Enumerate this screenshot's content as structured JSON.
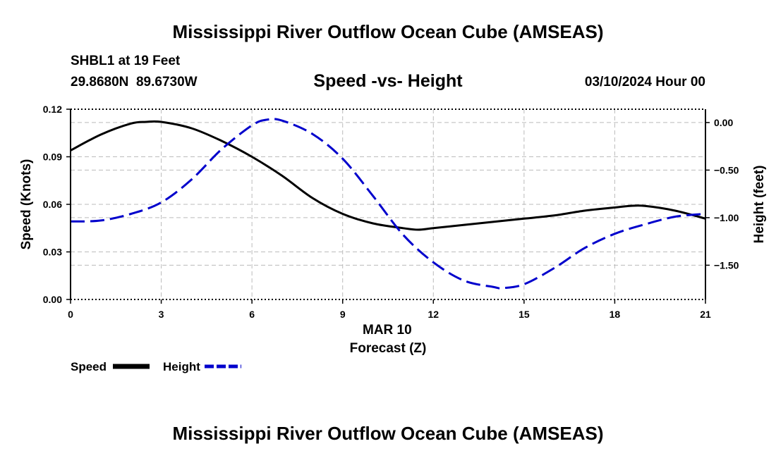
{
  "header": {
    "title": "Mississippi River Outflow Ocean Cube (AMSEAS)",
    "station": "SHBL1 at 19 Feet",
    "coords": "29.8680N  89.6730W",
    "subtitle": "Speed -vs- Height",
    "datetime": "03/10/2024 Hour 00"
  },
  "footer": {
    "title": "Mississippi River Outflow Ocean Cube (AMSEAS)"
  },
  "colors": {
    "speed": "#000000",
    "height": "#0000cc",
    "grid": "#bbbbbb"
  },
  "chart_data": {
    "type": "line",
    "title": "Speed -vs- Height",
    "xlabel": "Forecast (Z)",
    "xdate": "MAR 10",
    "xlim": [
      0,
      21
    ],
    "xticks": [
      0,
      3,
      6,
      9,
      12,
      15,
      18,
      21
    ],
    "ylabel_left": "Speed (Knots)",
    "ylim_left": [
      0,
      0.12
    ],
    "yticks_left": [
      "0.00",
      "0.03",
      "0.06",
      "0.09",
      "0.12"
    ],
    "ylabel_right": "Height (feet)",
    "ylim_right": [
      -1.86,
      0.14
    ],
    "yticks_right": [
      "0.00",
      "−0.50",
      "−1.00",
      "−1.50"
    ],
    "grid": true,
    "legend_position": "bottom-left",
    "series": [
      {
        "name": "Speed",
        "axis": "left",
        "style": "solid",
        "x": [
          0,
          1,
          2,
          2.5,
          3,
          4,
          5,
          6,
          7,
          8,
          9,
          10,
          11,
          11.5,
          12,
          13,
          14,
          15,
          16,
          17,
          18,
          18.5,
          19,
          20,
          21
        ],
        "y": [
          0.094,
          0.104,
          0.111,
          0.112,
          0.112,
          0.108,
          0.1,
          0.09,
          0.078,
          0.064,
          0.054,
          0.048,
          0.045,
          0.044,
          0.045,
          0.047,
          0.049,
          0.051,
          0.053,
          0.056,
          0.058,
          0.059,
          0.059,
          0.056,
          0.051
        ]
      },
      {
        "name": "Height",
        "axis": "right",
        "style": "dashed",
        "x": [
          0,
          1,
          2,
          3,
          4,
          5,
          6,
          6.5,
          7,
          8,
          9,
          10,
          11,
          12,
          13,
          14,
          14.3,
          15,
          16,
          17,
          18,
          19,
          20,
          21
        ],
        "y": [
          -1.04,
          -1.03,
          -0.96,
          -0.84,
          -0.6,
          -0.28,
          -0.03,
          0.03,
          0.02,
          -0.12,
          -0.38,
          -0.77,
          -1.18,
          -1.47,
          -1.66,
          -1.73,
          -1.74,
          -1.7,
          -1.53,
          -1.32,
          -1.17,
          -1.07,
          -0.99,
          -0.96
        ]
      }
    ]
  }
}
